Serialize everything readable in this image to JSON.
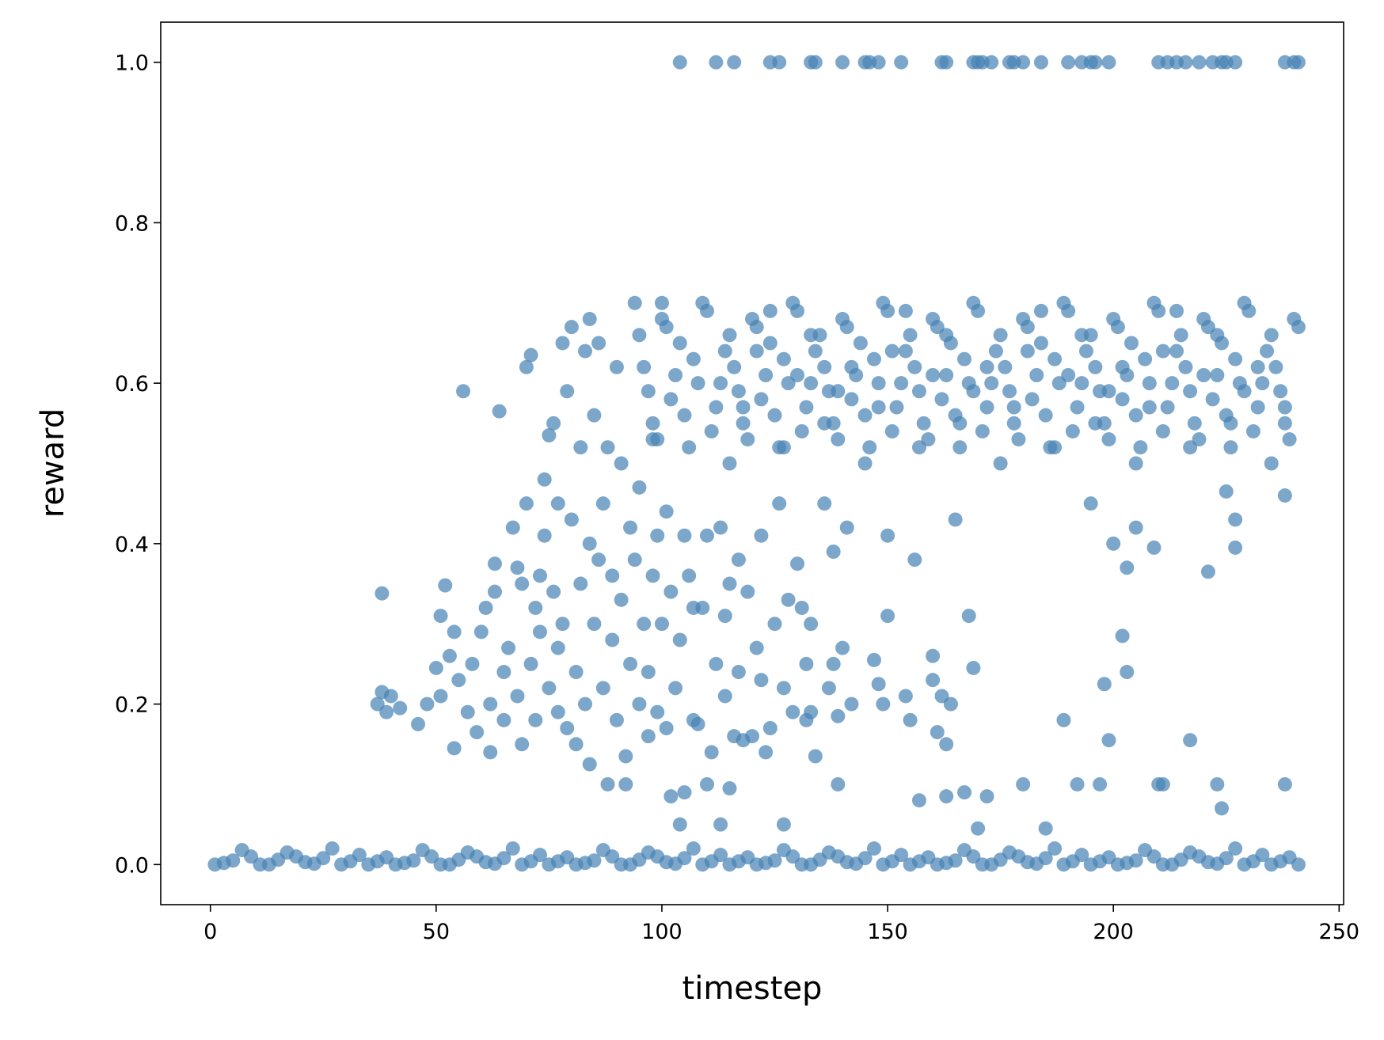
{
  "chart_data": {
    "type": "scatter",
    "x_label": "timestep",
    "y_label": "reward",
    "color": "#4682b4",
    "opacity": 0.7,
    "xlim": [
      -11,
      251
    ],
    "ylim": [
      -0.05,
      1.05
    ],
    "xticks": [
      0,
      50,
      100,
      150,
      200,
      250
    ],
    "yticks": [
      {
        "value": 0,
        "label": "0.0"
      },
      {
        "value": 0.2,
        "label": "0.2"
      },
      {
        "value": 0.4,
        "label": "0.4"
      },
      {
        "value": 0.6,
        "label": "0.6"
      },
      {
        "value": 0.8,
        "label": "0.8"
      },
      {
        "value": 1,
        "label": "1.0"
      }
    ],
    "series": [
      {
        "x": [
          1,
          5,
          9,
          13,
          17,
          21,
          25,
          29,
          33,
          37,
          41,
          45,
          49,
          53,
          57,
          61,
          65,
          69,
          73,
          77,
          81,
          85,
          89,
          93,
          97,
          101,
          105,
          109,
          113,
          117,
          121,
          125,
          129,
          133,
          137,
          141,
          145,
          149,
          153,
          157,
          161,
          165,
          169,
          173,
          177,
          181,
          185,
          189,
          193,
          197,
          201,
          205,
          209,
          213,
          217,
          221,
          225,
          229,
          233,
          237,
          241
        ],
        "values": [
          0,
          0.005,
          0.01,
          0,
          0.015,
          0.003,
          0.008,
          0,
          0.012,
          0.004,
          0,
          0.005,
          0.01,
          0,
          0.015,
          0.003,
          0.008,
          0,
          0.012,
          0.004,
          0,
          0.005,
          0.01,
          0,
          0.015,
          0.003,
          0.008,
          0,
          0.012,
          0.004,
          0,
          0.005,
          0.01,
          0,
          0.015,
          0.003,
          0.008,
          0,
          0.012,
          0.004,
          0,
          0.005,
          0.01,
          0,
          0.015,
          0.003,
          0.008,
          0,
          0.012,
          0.004,
          0,
          0.005,
          0.01,
          0,
          0.015,
          0.003,
          0.008,
          0,
          0.012,
          0.004,
          0
        ]
      },
      {
        "x": [
          3,
          7,
          11,
          15,
          19,
          23,
          27,
          31,
          35,
          39,
          43,
          47,
          51,
          55,
          59,
          63,
          67,
          71,
          75,
          79,
          83,
          87,
          91,
          95,
          99,
          103,
          107,
          111,
          115,
          119,
          123,
          127,
          131,
          135,
          139,
          143,
          147,
          151,
          155,
          159,
          163,
          167,
          171,
          175,
          179,
          183,
          187,
          191,
          195,
          199,
          203,
          207,
          211,
          215,
          219,
          223,
          227,
          231,
          235,
          239
        ],
        "values": [
          0.002,
          0.018,
          0,
          0.006,
          0.01,
          0.001,
          0.02,
          0.004,
          0,
          0.009,
          0.002,
          0.018,
          0,
          0.006,
          0.01,
          0.001,
          0.02,
          0.004,
          0,
          0.009,
          0.002,
          0.018,
          0,
          0.006,
          0.01,
          0.001,
          0.02,
          0.004,
          0,
          0.009,
          0.002,
          0.018,
          0,
          0.006,
          0.01,
          0.001,
          0.02,
          0.004,
          0,
          0.009,
          0.002,
          0.018,
          0,
          0.006,
          0.01,
          0.001,
          0.02,
          0.004,
          0,
          0.009,
          0.002,
          0.018,
          0,
          0.006,
          0.01,
          0.001,
          0.02,
          0.004,
          0,
          0.009
        ]
      },
      {
        "x": [
          104,
          112,
          116,
          124,
          126,
          133,
          134,
          140,
          145,
          146,
          148,
          153,
          162,
          163,
          169,
          170,
          171,
          173,
          177,
          178,
          180,
          184,
          190,
          193,
          195,
          196,
          199,
          210,
          212,
          214,
          216,
          219,
          222,
          224,
          225,
          227,
          238,
          240,
          241
        ],
        "values": [
          1,
          1,
          1,
          1,
          1,
          1,
          1,
          1,
          1,
          1,
          1,
          1,
          1,
          1,
          1,
          1,
          1,
          1,
          1,
          1,
          1,
          1,
          1,
          1,
          1,
          1,
          1,
          1,
          1,
          1,
          1,
          1,
          1,
          1,
          1,
          1,
          1,
          1,
          1
        ]
      },
      {
        "x": [
          96,
          98,
          100,
          102,
          104,
          106,
          108,
          110,
          112,
          114,
          116,
          118,
          120,
          122,
          124,
          126,
          128,
          130,
          132,
          134,
          136,
          138,
          140,
          142,
          144,
          146,
          148,
          150,
          152,
          154,
          156,
          158,
          160,
          162,
          164,
          166,
          168,
          170,
          172,
          174,
          176,
          178,
          180,
          182,
          184,
          186,
          188,
          190,
          192,
          194,
          196,
          198,
          200,
          202,
          204,
          206,
          208,
          210,
          212,
          214,
          216,
          218,
          220,
          222,
          224,
          226,
          228,
          230,
          232,
          234,
          236,
          238,
          240
        ],
        "values": [
          0.62,
          0.55,
          0.68,
          0.58,
          0.65,
          0.52,
          0.6,
          0.69,
          0.57,
          0.64,
          0.62,
          0.55,
          0.68,
          0.58,
          0.65,
          0.52,
          0.6,
          0.69,
          0.57,
          0.64,
          0.62,
          0.55,
          0.68,
          0.58,
          0.65,
          0.52,
          0.6,
          0.69,
          0.57,
          0.64,
          0.62,
          0.55,
          0.68,
          0.58,
          0.65,
          0.52,
          0.6,
          0.69,
          0.57,
          0.64,
          0.62,
          0.55,
          0.68,
          0.58,
          0.65,
          0.52,
          0.6,
          0.69,
          0.57,
          0.64,
          0.62,
          0.55,
          0.68,
          0.58,
          0.65,
          0.52,
          0.6,
          0.69,
          0.57,
          0.64,
          0.62,
          0.55,
          0.68,
          0.58,
          0.65,
          0.52,
          0.6,
          0.69,
          0.57,
          0.64,
          0.62,
          0.55,
          0.68
        ]
      },
      {
        "x": [
          95,
          97,
          99,
          101,
          103,
          105,
          107,
          109,
          111,
          113,
          115,
          117,
          119,
          121,
          123,
          125,
          127,
          129,
          131,
          133,
          135,
          137,
          139,
          141,
          143,
          145,
          147,
          149,
          151,
          153,
          155,
          157,
          159,
          161,
          163,
          165,
          167,
          169,
          171,
          173,
          175,
          177,
          179,
          181,
          183,
          185,
          187,
          189,
          191,
          193,
          195,
          197,
          199,
          201,
          203,
          205,
          207,
          209,
          211,
          213,
          215,
          217,
          219,
          221,
          223,
          225,
          227,
          229,
          231,
          233,
          235,
          237,
          239,
          241
        ],
        "values": [
          0.66,
          0.59,
          0.53,
          0.67,
          0.61,
          0.56,
          0.63,
          0.7,
          0.54,
          0.6,
          0.66,
          0.59,
          0.53,
          0.67,
          0.61,
          0.56,
          0.63,
          0.7,
          0.54,
          0.6,
          0.66,
          0.59,
          0.53,
          0.67,
          0.61,
          0.56,
          0.63,
          0.7,
          0.54,
          0.6,
          0.66,
          0.59,
          0.53,
          0.67,
          0.61,
          0.56,
          0.63,
          0.7,
          0.54,
          0.6,
          0.66,
          0.59,
          0.53,
          0.67,
          0.61,
          0.56,
          0.63,
          0.7,
          0.54,
          0.6,
          0.66,
          0.59,
          0.53,
          0.67,
          0.61,
          0.56,
          0.63,
          0.7,
          0.54,
          0.6,
          0.66,
          0.59,
          0.53,
          0.67,
          0.61,
          0.56,
          0.63,
          0.7,
          0.54,
          0.6,
          0.66,
          0.59,
          0.53,
          0.67
        ]
      },
      {
        "x": [
          115,
          118,
          121,
          124,
          127,
          130,
          133,
          136,
          139,
          142,
          145,
          148,
          151,
          154,
          157,
          160,
          163,
          166,
          169,
          172,
          175,
          178,
          181,
          184,
          187,
          190,
          193,
          196,
          199,
          202,
          205,
          208,
          211,
          214,
          217,
          220,
          223,
          226,
          229,
          232,
          235,
          238
        ],
        "values": [
          0.5,
          0.57,
          0.64,
          0.69,
          0.52,
          0.61,
          0.66,
          0.55,
          0.59,
          0.62,
          0.5,
          0.57,
          0.64,
          0.69,
          0.52,
          0.61,
          0.66,
          0.55,
          0.59,
          0.62,
          0.5,
          0.57,
          0.64,
          0.69,
          0.52,
          0.61,
          0.66,
          0.55,
          0.59,
          0.62,
          0.5,
          0.57,
          0.64,
          0.69,
          0.52,
          0.61,
          0.66,
          0.55,
          0.59,
          0.62,
          0.5,
          0.57
        ]
      },
      {
        "x": [
          37,
          38,
          38,
          39,
          40,
          42,
          46,
          48,
          50,
          51,
          51,
          52,
          53,
          54,
          54,
          55,
          56,
          57,
          58,
          59,
          60,
          61,
          62,
          62,
          63,
          63,
          64,
          65,
          65,
          66,
          67,
          68,
          68,
          69,
          69,
          70,
          70,
          71,
          71,
          72,
          72,
          73,
          73,
          74,
          74,
          75,
          75,
          76,
          76,
          77,
          77,
          77,
          78,
          78,
          79,
          79,
          80,
          80,
          81,
          81,
          82,
          82,
          83,
          83,
          84,
          84,
          84,
          85,
          85,
          86,
          86,
          87,
          87,
          88,
          88,
          89,
          89,
          90,
          90,
          91,
          91,
          92,
          92,
          93,
          93,
          94,
          94,
          95,
          95,
          96,
          97,
          97,
          98,
          98,
          99,
          99,
          100,
          100,
          101,
          101,
          102,
          102,
          103,
          104,
          104,
          105,
          105,
          106,
          107,
          107,
          108,
          109,
          110,
          110,
          111,
          112,
          113,
          113,
          114,
          114,
          115,
          115,
          116,
          117,
          117,
          118,
          119,
          120,
          121,
          122,
          122,
          123,
          124,
          125,
          126,
          127,
          127,
          128,
          129,
          130,
          131,
          132,
          132,
          133,
          133,
          134,
          136,
          137,
          138,
          138,
          139,
          139,
          140,
          141,
          142,
          147,
          148,
          149,
          150,
          150,
          154,
          155,
          156,
          157,
          160,
          160,
          161,
          162,
          163,
          163,
          164,
          165,
          167,
          168,
          169,
          170,
          172,
          180,
          185,
          189,
          192,
          195,
          197,
          198,
          199,
          200,
          202,
          203,
          203,
          205,
          209,
          210,
          211,
          217,
          221,
          223,
          224,
          225,
          227,
          227,
          238,
          238
        ],
        "values": [
          0.2,
          0.215,
          0.338,
          0.19,
          0.21,
          0.195,
          0.175,
          0.2,
          0.245,
          0.21,
          0.31,
          0.348,
          0.26,
          0.145,
          0.29,
          0.23,
          0.59,
          0.19,
          0.25,
          0.165,
          0.29,
          0.32,
          0.2,
          0.14,
          0.375,
          0.34,
          0.565,
          0.18,
          0.24,
          0.27,
          0.42,
          0.21,
          0.37,
          0.15,
          0.35,
          0.45,
          0.62,
          0.635,
          0.25,
          0.32,
          0.18,
          0.36,
          0.29,
          0.48,
          0.41,
          0.22,
          0.535,
          0.55,
          0.34,
          0.45,
          0.19,
          0.27,
          0.65,
          0.3,
          0.17,
          0.59,
          0.67,
          0.43,
          0.15,
          0.24,
          0.52,
          0.35,
          0.64,
          0.2,
          0.68,
          0.125,
          0.4,
          0.3,
          0.56,
          0.38,
          0.65,
          0.22,
          0.45,
          0.1,
          0.52,
          0.28,
          0.36,
          0.62,
          0.18,
          0.33,
          0.5,
          0.135,
          0.1,
          0.25,
          0.42,
          0.7,
          0.38,
          0.2,
          0.47,
          0.3,
          0.24,
          0.16,
          0.36,
          0.53,
          0.41,
          0.19,
          0.3,
          0.7,
          0.44,
          0.17,
          0.085,
          0.34,
          0.22,
          0.05,
          0.28,
          0.09,
          0.41,
          0.36,
          0.32,
          0.18,
          0.175,
          0.32,
          0.1,
          0.41,
          0.14,
          0.25,
          0.05,
          0.42,
          0.21,
          0.31,
          0.35,
          0.095,
          0.16,
          0.24,
          0.38,
          0.155,
          0.34,
          0.16,
          0.27,
          0.23,
          0.41,
          0.14,
          0.17,
          0.3,
          0.45,
          0.22,
          0.05,
          0.33,
          0.19,
          0.375,
          0.32,
          0.25,
          0.18,
          0.3,
          0.19,
          0.135,
          0.45,
          0.22,
          0.25,
          0.39,
          0.1,
          0.185,
          0.27,
          0.42,
          0.2,
          0.255,
          0.225,
          0.2,
          0.41,
          0.31,
          0.21,
          0.18,
          0.38,
          0.08,
          0.26,
          0.23,
          0.165,
          0.21,
          0.15,
          0.085,
          0.2,
          0.43,
          0.09,
          0.31,
          0.245,
          0.045,
          0.085,
          0.1,
          0.045,
          0.18,
          0.1,
          0.45,
          0.1,
          0.225,
          0.155,
          0.4,
          0.285,
          0.24,
          0.37,
          0.42,
          0.395,
          0.1,
          0.1,
          0.155,
          0.365,
          0.1,
          0.07,
          0.465,
          0.43,
          0.395,
          0.46,
          0.1
        ]
      }
    ]
  }
}
